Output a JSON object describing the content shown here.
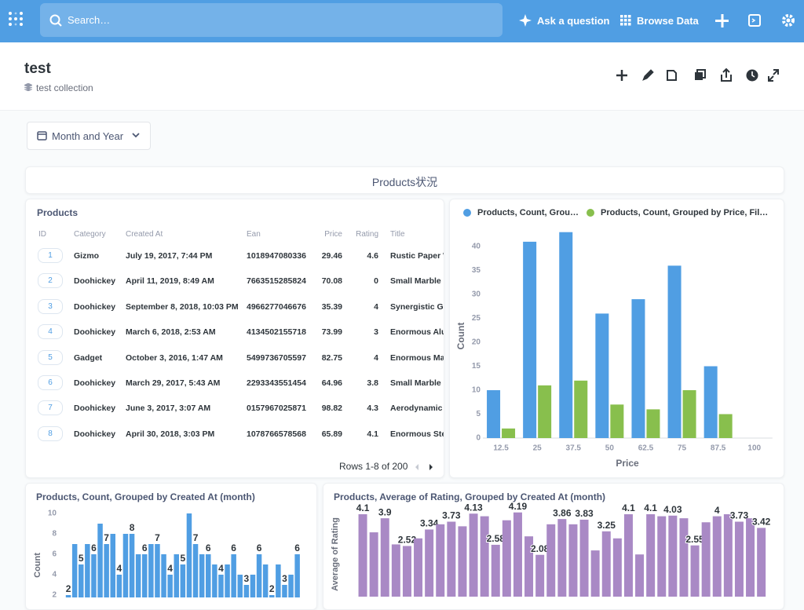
{
  "nav": {
    "search": "Search…",
    "ask": "Ask a question",
    "browse": "Browse Data"
  },
  "header": {
    "title": "test",
    "collection": "test collection"
  },
  "filter": {
    "label": "Month and Year"
  },
  "section": {
    "title": "Products状況"
  },
  "table": {
    "title": "Products",
    "columns": [
      "ID",
      "Category",
      "Created At",
      "Ean",
      "Price",
      "Rating",
      "Title"
    ],
    "rows": [
      [
        1,
        "Gizmo",
        "July 19, 2017, 7:44 PM",
        "1018947080336",
        29.46,
        4.6,
        "Rustic Paper W"
      ],
      [
        2,
        "Doohickey",
        "April 11, 2019, 8:49 AM",
        "7663515285824",
        70.08,
        0,
        "Small Marble S"
      ],
      [
        3,
        "Doohickey",
        "September 8, 2018, 10:03 PM",
        "4966277046676",
        35.39,
        4,
        "Synergistic Gra"
      ],
      [
        4,
        "Doohickey",
        "March 6, 2018, 2:53 AM",
        "4134502155718",
        73.99,
        3,
        "Enormous Alur"
      ],
      [
        5,
        "Gadget",
        "October 3, 2016, 1:47 AM",
        "5499736705597",
        82.75,
        4,
        "Enormous Mar"
      ],
      [
        6,
        "Doohickey",
        "March 29, 2017, 5:43 AM",
        "2293343551454",
        64.96,
        3.8,
        "Small Marble H"
      ],
      [
        7,
        "Doohickey",
        "June 3, 2017, 3:07 AM",
        "0157967025871",
        98.82,
        4.3,
        "Aerodynamic L"
      ],
      [
        8,
        "Doohickey",
        "April 30, 2018, 3:03 PM",
        "1078766578568",
        65.89,
        4.1,
        "Enormous Stee"
      ]
    ],
    "footer": "Rows 1-8 of 200"
  },
  "chart_data": [
    {
      "type": "bar",
      "xlabel": "Price",
      "ylabel": "Count",
      "categories": [
        12.5,
        25,
        37.5,
        50,
        62.5,
        75,
        87.5,
        100
      ],
      "series": [
        {
          "name": "Products, Count, Grou…",
          "color": "#509ee3",
          "values": [
            10,
            41,
            43,
            26,
            29,
            36,
            15,
            null
          ]
        },
        {
          "name": "Products, Count, Grouped by Price, Fil…",
          "color": "#88bf4d",
          "values": [
            2,
            11,
            12,
            7,
            6,
            10,
            5,
            null
          ]
        }
      ],
      "ylim": [
        0,
        45
      ],
      "yticks": [
        0,
        5,
        10,
        15,
        20,
        25,
        30,
        35,
        40
      ],
      "legend": "top"
    },
    {
      "type": "bar",
      "title": "Products, Count, Grouped by Created At (month)",
      "ylabel": "Count",
      "color": "#509ee3",
      "values": [
        2,
        7,
        5,
        7,
        6,
        9,
        7,
        8,
        4,
        8,
        8,
        6,
        6,
        7,
        7,
        6,
        4,
        6,
        5,
        10,
        7,
        6,
        6,
        5,
        4,
        5,
        6,
        4,
        3,
        4,
        6,
        5,
        2,
        5,
        3,
        4,
        6
      ],
      "value_labels": [
        "2",
        null,
        "5",
        null,
        "6",
        null,
        "7",
        null,
        "4",
        null,
        "8",
        null,
        "6",
        null,
        "7",
        null,
        "4",
        null,
        "5",
        null,
        "7",
        null,
        "6",
        null,
        "4",
        null,
        "6",
        null,
        "3",
        null,
        "6",
        null,
        "2",
        null,
        "3",
        null,
        "6"
      ],
      "ylim": [
        0,
        10
      ],
      "yticks": [
        2,
        4,
        6,
        8,
        10
      ]
    },
    {
      "type": "bar",
      "title": "Products, Average of Rating, Grouped by Created At (month)",
      "ylabel": "Average of Rating",
      "color": "#a989c5",
      "values": [
        4.1,
        3.2,
        3.9,
        2.6,
        2.52,
        2.9,
        3.34,
        3.6,
        3.73,
        3.5,
        4.13,
        4.0,
        2.58,
        3.8,
        4.19,
        3.0,
        2.08,
        3.6,
        3.86,
        3.6,
        3.83,
        2.3,
        3.25,
        2.9,
        4.1,
        2.1,
        4.1,
        4.0,
        4.03,
        3.9,
        2.55,
        3.7,
        4,
        4.1,
        3.73,
        3.9,
        3.42
      ],
      "value_labels": [
        "4.1",
        null,
        "3.9",
        null,
        "2.52",
        null,
        "3.34",
        null,
        "3.73",
        null,
        "4.13",
        null,
        "2.58",
        null,
        "4.19",
        null,
        "2.08",
        null,
        "3.86",
        null,
        "3.83",
        null,
        "3.25",
        null,
        "4.1",
        null,
        "4.1",
        null,
        "4.03",
        null,
        "2.55",
        null,
        "4",
        null,
        "3.73",
        null,
        "3.42"
      ],
      "ylim": [
        0,
        4.3
      ]
    }
  ]
}
